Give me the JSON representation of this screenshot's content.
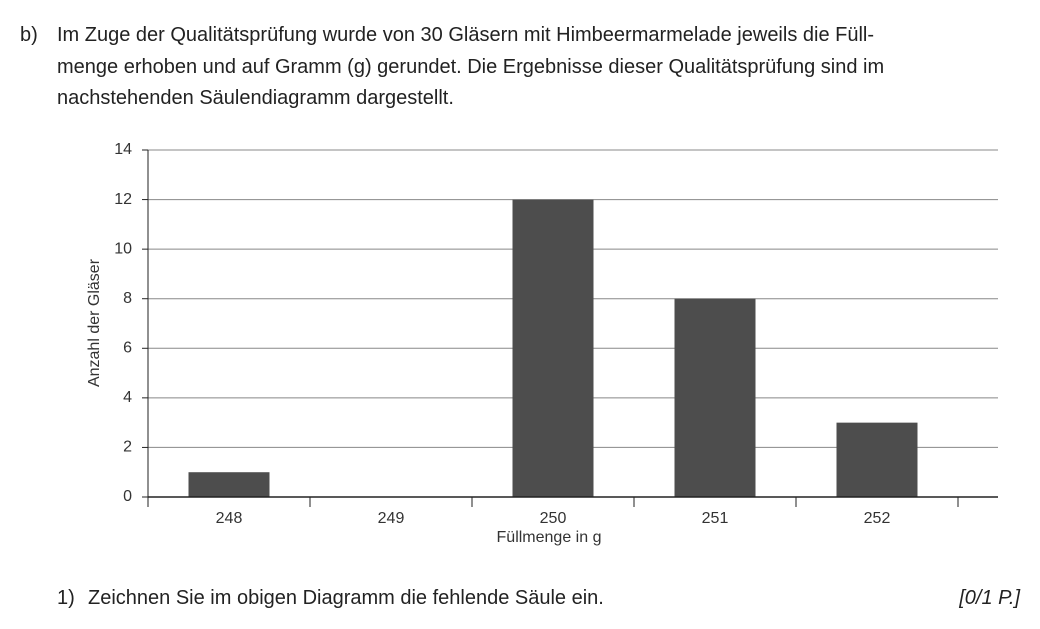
{
  "header": {
    "label": "b)",
    "lines": [
      "Im Zuge der Qualitätsprüfung wurde von 30 Gläsern mit Himbeermarmelade jeweils die Füll-",
      "menge erhoben und auf Gramm (g) gerundet. Die Ergebnisse dieser Qualitätsprüfung sind im",
      "nachstehenden Säulendiagramm dargestellt."
    ]
  },
  "chart_data": {
    "type": "bar",
    "categories": [
      "248",
      "249",
      "250",
      "251",
      "252"
    ],
    "values": [
      1,
      null,
      12,
      8,
      3
    ],
    "color": "#4d4d4d",
    "xlabel": "Füllmenge in g",
    "ylabel": "Anzahl der Gläser",
    "ylim": [
      0,
      14
    ],
    "yticks": [
      0,
      2,
      4,
      6,
      8,
      10,
      12,
      14
    ],
    "grid": true
  },
  "task": {
    "label": "1)",
    "text": "Zeichnen Sie im obigen Diagramm die fehlende Säule ein.",
    "points": "[0/1 P.]"
  }
}
